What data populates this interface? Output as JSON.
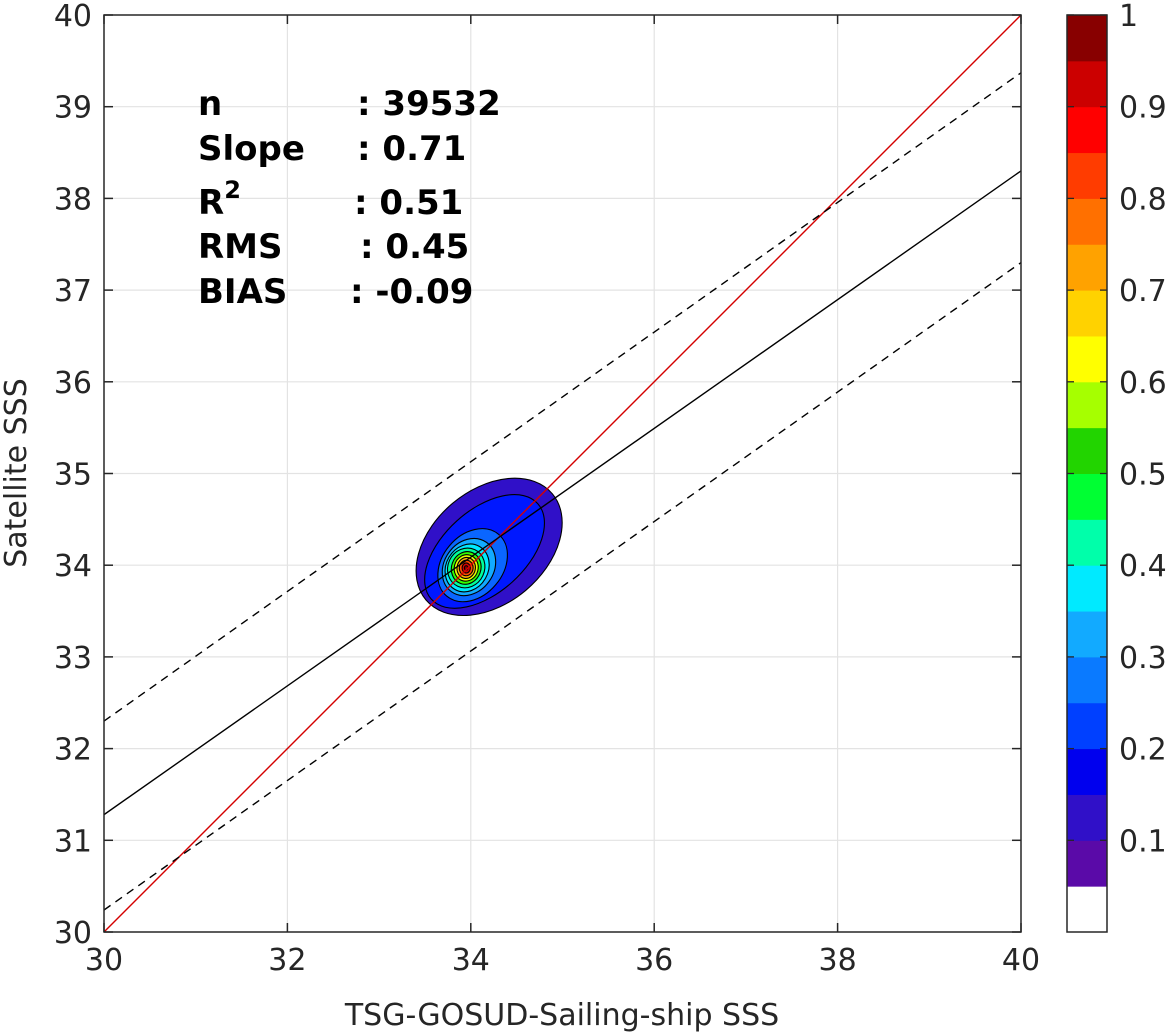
{
  "chart_data": {
    "type": "contour",
    "xlabel": "TSG-GOSUD-Sailing-ship SSS",
    "ylabel": "Satellite SSS",
    "xlim": [
      30,
      40
    ],
    "ylim": [
      30,
      40
    ],
    "x_ticks": [
      30,
      32,
      34,
      36,
      38,
      40
    ],
    "y_ticks": [
      30,
      31,
      32,
      33,
      34,
      35,
      36,
      37,
      38,
      39,
      40
    ],
    "grid": true,
    "stats": [
      {
        "label": "n",
        "value": ": 39532"
      },
      {
        "label": "Slope",
        "value": ": 0.71"
      },
      {
        "label": "R",
        "sup": "2",
        "value": ": 0.51"
      },
      {
        "label": "RMS",
        "value": ": 0.45"
      },
      {
        "label": "BIAS",
        "value": ": -0.09"
      }
    ],
    "lines": [
      {
        "kind": "one-to-one",
        "color": "#d40000",
        "dash": "solid",
        "x": [
          30,
          40
        ],
        "y": [
          30,
          40
        ]
      },
      {
        "kind": "regression",
        "color": "#000000",
        "dash": "solid",
        "x": [
          30,
          40
        ],
        "y": [
          31.28,
          38.3
        ]
      },
      {
        "kind": "upper-bound",
        "color": "#000000",
        "dash": "dashed",
        "x": [
          30,
          40
        ],
        "y": [
          32.3,
          39.37
        ]
      },
      {
        "kind": "lower-bound",
        "color": "#000000",
        "dash": "dashed",
        "x": [
          30,
          40
        ],
        "y": [
          30.24,
          37.3
        ]
      }
    ],
    "density_center": {
      "x": 33.95,
      "y": 33.97
    },
    "contours": [
      {
        "level": 0.05,
        "rx": 0.9,
        "ry": 0.62,
        "cx": 34.2,
        "cy": 34.2,
        "angle": 40,
        "color": "#3010c8"
      },
      {
        "level": 0.15,
        "rx": 0.78,
        "ry": 0.45,
        "cx": 34.15,
        "cy": 34.15,
        "angle": 42,
        "color": "#0018ff"
      },
      {
        "level": 0.25,
        "rx": 0.44,
        "ry": 0.33,
        "cx": 34.02,
        "cy": 34.0,
        "angle": 50,
        "color": "#0a66ff"
      },
      {
        "level": 0.3,
        "rx": 0.33,
        "ry": 0.27,
        "cx": 33.98,
        "cy": 33.98,
        "angle": 55,
        "color": "#12aaff"
      },
      {
        "level": 0.35,
        "rx": 0.27,
        "ry": 0.23,
        "cx": 33.96,
        "cy": 33.97,
        "angle": 60,
        "color": "#00eaff"
      },
      {
        "level": 0.4,
        "rx": 0.22,
        "ry": 0.2,
        "cx": 33.95,
        "cy": 33.97,
        "angle": 65,
        "color": "#00ff9a"
      },
      {
        "level": 0.5,
        "rx": 0.18,
        "ry": 0.16,
        "cx": 33.95,
        "cy": 33.97,
        "angle": 70,
        "color": "#32ff00"
      },
      {
        "level": 0.6,
        "rx": 0.145,
        "ry": 0.13,
        "cx": 33.95,
        "cy": 33.97,
        "angle": 75,
        "color": "#e6ff00"
      },
      {
        "level": 0.7,
        "rx": 0.115,
        "ry": 0.1,
        "cx": 33.95,
        "cy": 33.97,
        "angle": 80,
        "color": "#ffb000"
      },
      {
        "level": 0.8,
        "rx": 0.085,
        "ry": 0.075,
        "cx": 33.95,
        "cy": 33.97,
        "angle": 85,
        "color": "#ff4a00"
      },
      {
        "level": 0.9,
        "rx": 0.055,
        "ry": 0.045,
        "cx": 33.95,
        "cy": 33.97,
        "angle": 90,
        "color": "#d80000"
      },
      {
        "level": 1.0,
        "rx": 0.025,
        "ry": 0.02,
        "cx": 33.95,
        "cy": 33.97,
        "angle": 90,
        "color": "#8a0000"
      }
    ],
    "colorbar": {
      "ticks": [
        0.1,
        0.2,
        0.3,
        0.4,
        0.5,
        0.6,
        0.7,
        0.8,
        0.9,
        1
      ],
      "tick_labels": [
        "0.1",
        "0.2",
        "0.3",
        "0.4",
        "0.5",
        "0.6",
        "0.7",
        "0.8",
        "0.9",
        "1"
      ],
      "range": [
        0,
        1
      ],
      "bins": [
        {
          "lo": 0.0,
          "hi": 0.05,
          "color": "#ffffff"
        },
        {
          "lo": 0.05,
          "hi": 0.1,
          "color": "#5a0aa8"
        },
        {
          "lo": 0.1,
          "hi": 0.15,
          "color": "#3010c8"
        },
        {
          "lo": 0.15,
          "hi": 0.2,
          "color": "#0000ee"
        },
        {
          "lo": 0.2,
          "hi": 0.25,
          "color": "#0040ff"
        },
        {
          "lo": 0.25,
          "hi": 0.3,
          "color": "#0a7aff"
        },
        {
          "lo": 0.3,
          "hi": 0.35,
          "color": "#12aaff"
        },
        {
          "lo": 0.35,
          "hi": 0.4,
          "color": "#00eaff"
        },
        {
          "lo": 0.4,
          "hi": 0.45,
          "color": "#00ffaa"
        },
        {
          "lo": 0.45,
          "hi": 0.5,
          "color": "#00ff33"
        },
        {
          "lo": 0.5,
          "hi": 0.55,
          "color": "#22d400"
        },
        {
          "lo": 0.55,
          "hi": 0.6,
          "color": "#a6ff00"
        },
        {
          "lo": 0.6,
          "hi": 0.65,
          "color": "#ffff00"
        },
        {
          "lo": 0.65,
          "hi": 0.7,
          "color": "#ffd200"
        },
        {
          "lo": 0.7,
          "hi": 0.75,
          "color": "#ffa200"
        },
        {
          "lo": 0.75,
          "hi": 0.8,
          "color": "#ff7000"
        },
        {
          "lo": 0.8,
          "hi": 0.85,
          "color": "#ff3c00"
        },
        {
          "lo": 0.85,
          "hi": 0.9,
          "color": "#ff0000"
        },
        {
          "lo": 0.9,
          "hi": 0.95,
          "color": "#cc0000"
        },
        {
          "lo": 0.95,
          "hi": 1.0,
          "color": "#880000"
        }
      ]
    }
  }
}
